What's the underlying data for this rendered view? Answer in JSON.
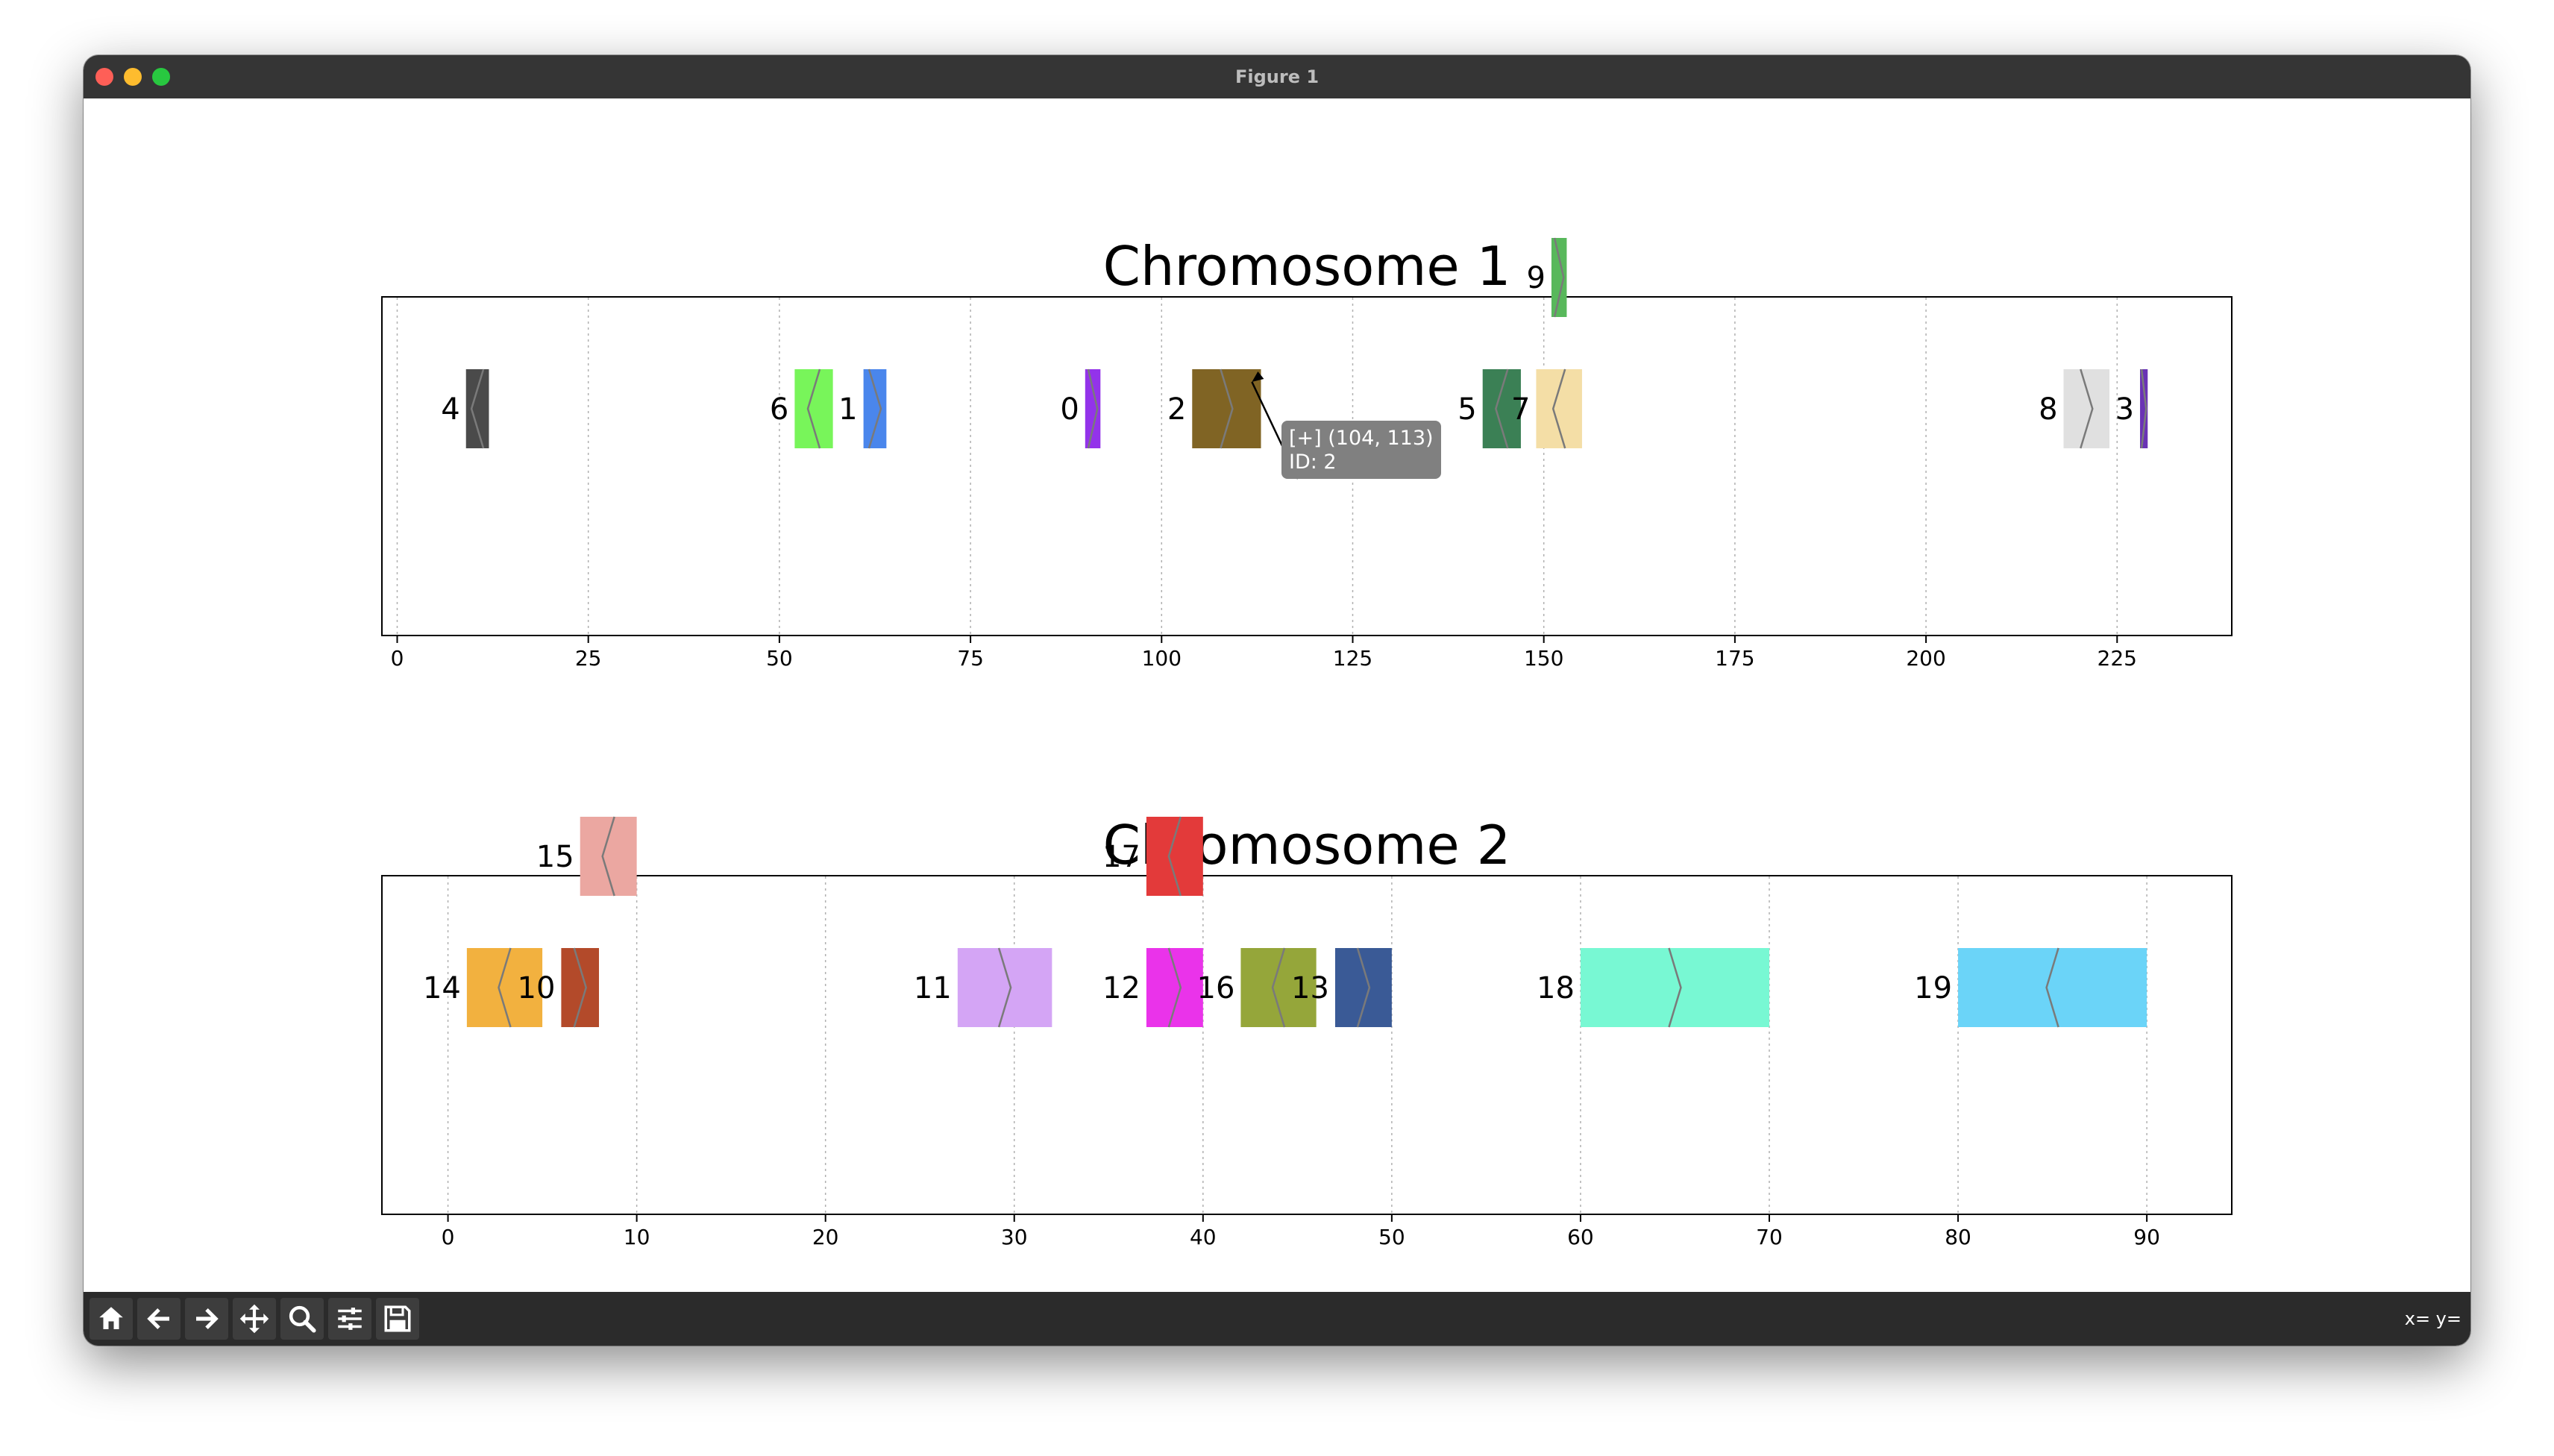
{
  "window": {
    "title": "Figure 1"
  },
  "toolbar": {
    "buttons": [
      {
        "name": "home-icon"
      },
      {
        "name": "back-icon"
      },
      {
        "name": "forward-icon"
      },
      {
        "name": "pan-icon"
      },
      {
        "name": "zoom-icon"
      },
      {
        "name": "configure-subplots-icon"
      },
      {
        "name": "save-icon"
      }
    ],
    "coords_text": "x= y="
  },
  "chart_data": [
    {
      "type": "gene-track",
      "title": "Chromosome 1",
      "xlim": [
        -2,
        240
      ],
      "xticks": [
        0,
        25,
        50,
        75,
        100,
        125,
        150,
        175,
        200,
        225
      ],
      "grid": true,
      "genes": [
        {
          "id": "4",
          "start": 9,
          "end": 12,
          "strand": "-",
          "row": 0,
          "color": "#4a4a4a"
        },
        {
          "id": "6",
          "start": 52,
          "end": 57,
          "strand": "-",
          "row": 0,
          "color": "#78f55a"
        },
        {
          "id": "1",
          "start": 61,
          "end": 64,
          "strand": "+",
          "row": 0,
          "color": "#4a86ec"
        },
        {
          "id": "0",
          "start": 90,
          "end": 92,
          "strand": "+",
          "row": 0,
          "color": "#9333ea"
        },
        {
          "id": "2",
          "start": 104,
          "end": 113,
          "strand": "+",
          "row": 0,
          "color": "#806424"
        },
        {
          "id": "5",
          "start": 142,
          "end": 147,
          "strand": "-",
          "row": 0,
          "color": "#3b8055"
        },
        {
          "id": "7",
          "start": 149,
          "end": 155,
          "strand": "-",
          "row": 0,
          "color": "#f4dea6"
        },
        {
          "id": "8",
          "start": 218,
          "end": 224,
          "strand": "+",
          "row": 0,
          "color": "#e0e0e0"
        },
        {
          "id": "3",
          "start": 228,
          "end": 229,
          "strand": "+",
          "row": 0,
          "color": "#6a33b5"
        },
        {
          "id": "9",
          "start": 151,
          "end": 153,
          "strand": "+",
          "row": 1,
          "color": "#58b85b"
        }
      ],
      "annotation": {
        "line1": "[+] (104, 113)",
        "line2": "ID: 2",
        "target_gene": "2"
      }
    },
    {
      "type": "gene-track",
      "title": "Chromosome 2",
      "xlim": [
        -3.5,
        94.5
      ],
      "xticks": [
        0,
        10,
        20,
        30,
        40,
        50,
        60,
        70,
        80,
        90
      ],
      "grid": true,
      "genes": [
        {
          "id": "14",
          "start": 1,
          "end": 5,
          "strand": "-",
          "row": 0,
          "color": "#f2b13f"
        },
        {
          "id": "10",
          "start": 6,
          "end": 8,
          "strand": "+",
          "row": 0,
          "color": "#b34a2a"
        },
        {
          "id": "11",
          "start": 27,
          "end": 32,
          "strand": "+",
          "row": 0,
          "color": "#d4a5f5"
        },
        {
          "id": "12",
          "start": 37,
          "end": 40,
          "strand": "+",
          "row": 0,
          "color": "#ea33ea"
        },
        {
          "id": "16",
          "start": 42,
          "end": 46,
          "strand": "-",
          "row": 0,
          "color": "#95a63a"
        },
        {
          "id": "13",
          "start": 47,
          "end": 50,
          "strand": "+",
          "row": 0,
          "color": "#3a5a96"
        },
        {
          "id": "18",
          "start": 60,
          "end": 70,
          "strand": "+",
          "row": 0,
          "color": "#78f8d3"
        },
        {
          "id": "19",
          "start": 80,
          "end": 90,
          "strand": "-",
          "row": 0,
          "color": "#6bd4f8"
        },
        {
          "id": "15",
          "start": 7,
          "end": 10,
          "strand": "-",
          "row": 1,
          "color": "#eba7a1"
        },
        {
          "id": "17",
          "start": 37,
          "end": 40,
          "strand": "-",
          "row": 1,
          "color": "#e33a3a"
        }
      ]
    }
  ]
}
